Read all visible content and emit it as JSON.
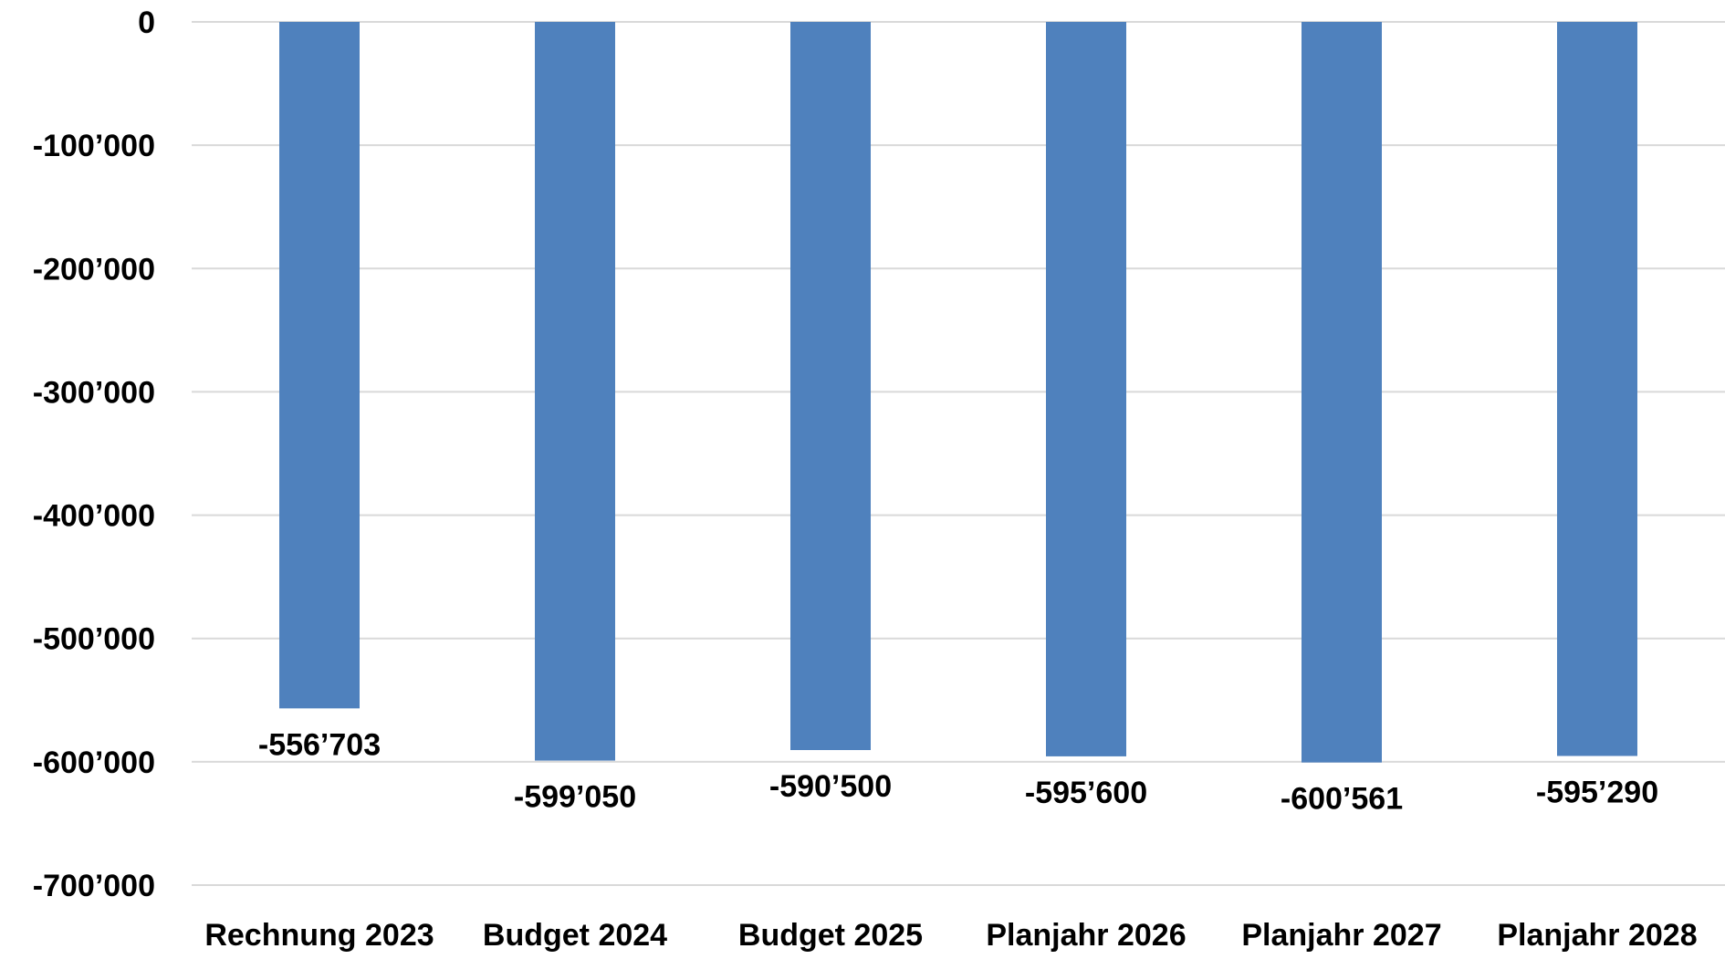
{
  "chart_data": {
    "type": "bar",
    "title": "",
    "xlabel": "",
    "ylabel": "",
    "categories": [
      "Rechnung 2023",
      "Budget 2024",
      "Budget 2025",
      "Planjahr 2026",
      "Planjahr 2027",
      "Planjahr 2028"
    ],
    "values": [
      -556703,
      -599050,
      -590500,
      -595600,
      -600561,
      -595290
    ],
    "data_labels": [
      "-556’703",
      "-599’050",
      "-590’500",
      "-595’600",
      "-600’561",
      "-595’290"
    ],
    "ylim": [
      -700000,
      0
    ],
    "y_ticks": [
      0,
      -100000,
      -200000,
      -300000,
      -400000,
      -500000,
      -600000,
      -700000
    ],
    "y_tick_labels": [
      "0",
      "-100’000",
      "-200’000",
      "-300’000",
      "-400’000",
      "-500’000",
      "-600’000",
      "-700’000"
    ],
    "grid": true,
    "legend": "none",
    "bar_color": "#4F81BD",
    "grid_color": "#D9D9D9"
  }
}
